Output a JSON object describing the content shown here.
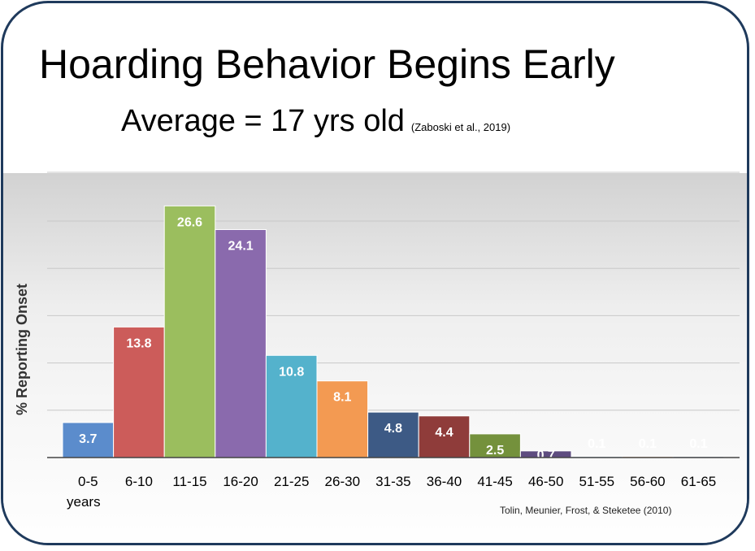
{
  "header": {
    "title": "Hoarding Behavior Begins Early",
    "subtitle": "Average = 17 yrs old",
    "citation": "(Zaboski et al., 2019)"
  },
  "source": "Tolin, Meunier, Frost, & Steketee (2010)",
  "chart_data": {
    "type": "bar",
    "ylabel": "% Reporting Onset",
    "xlabel": "years",
    "categories": [
      "0-5",
      "6-10",
      "11-15",
      "16-20",
      "21-25",
      "26-30",
      "31-35",
      "36-40",
      "41-45",
      "46-50",
      "51-55",
      "56-60",
      "61-65"
    ],
    "values": [
      3.7,
      13.8,
      26.6,
      24.1,
      10.8,
      8.1,
      4.8,
      4.4,
      2.5,
      0.7,
      0.1,
      0.1,
      0.1
    ],
    "data_labels": [
      "3.7",
      "13.8",
      "26.6",
      "24.1",
      "10.8",
      "8.1",
      "4.8",
      "4.4",
      "2.5",
      "0.7",
      "0.1",
      "0.1",
      "0.1"
    ],
    "colors": [
      "#5b8ccc",
      "#cc5c5a",
      "#9bbe5e",
      "#8a6aad",
      "#54b2cc",
      "#f39a52",
      "#3d5a85",
      "#8f3c3a",
      "#74913c",
      "#5e4c80",
      "#4aa3c0",
      "#f08c3a",
      "#3f6fae"
    ],
    "ylim": [
      0,
      30
    ],
    "gridlines": [
      5,
      10,
      15,
      20,
      25
    ],
    "grid": true,
    "legend": "none"
  }
}
